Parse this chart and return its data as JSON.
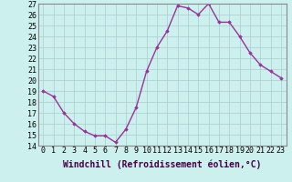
{
  "x_vals": [
    0,
    1,
    2,
    3,
    4,
    5,
    6,
    7,
    8,
    9,
    10,
    11,
    12,
    13,
    14,
    15,
    16,
    17,
    18,
    19,
    20,
    21,
    22,
    23
  ],
  "y_vals": [
    19.0,
    18.5,
    17.0,
    16.0,
    15.3,
    14.9,
    14.9,
    14.3,
    15.5,
    17.5,
    20.8,
    23.0,
    24.5,
    26.8,
    26.6,
    26.0,
    27.0,
    25.3,
    25.3,
    24.0,
    22.5,
    21.4,
    20.8,
    20.2
  ],
  "ylim": [
    14,
    27
  ],
  "yticks": [
    14,
    15,
    16,
    17,
    18,
    19,
    20,
    21,
    22,
    23,
    24,
    25,
    26,
    27
  ],
  "xtick_labels": [
    "0",
    "1",
    "2",
    "3",
    "4",
    "5",
    "6",
    "7",
    "8",
    "9",
    "10",
    "11",
    "12",
    "13",
    "14",
    "15",
    "16",
    "17",
    "18",
    "19",
    "20",
    "21",
    "22",
    "23"
  ],
  "line_color": "#993399",
  "marker": "D",
  "marker_size": 1.8,
  "line_width": 1.0,
  "bg_color": "#ccf0ee",
  "grid_color": "#aacccc",
  "xlabel": "Windchill (Refroidissement éolien,°C)",
  "xlabel_fontsize": 7.0,
  "tick_fontsize": 6.0
}
